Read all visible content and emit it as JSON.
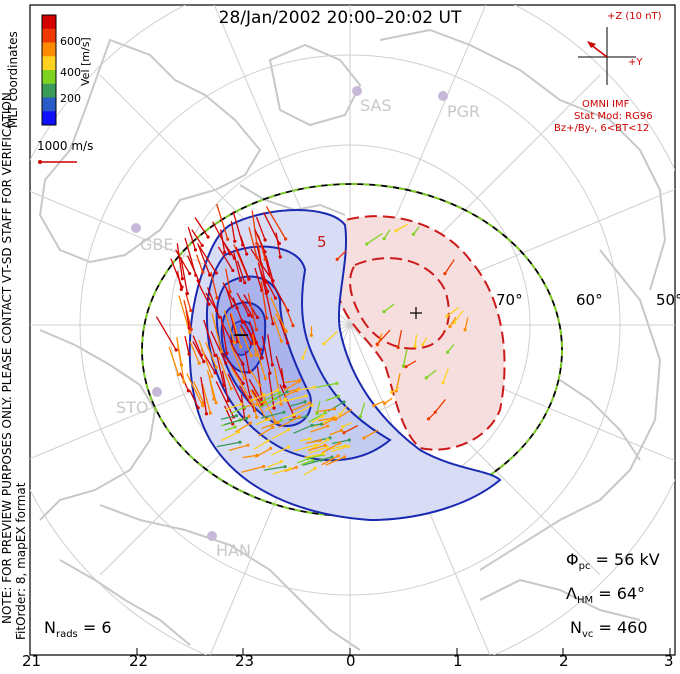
{
  "header": {
    "title": "28/Jan/2002 20:00–20:02 UT"
  },
  "colorbar": {
    "axis_label": "Vel [m/s]",
    "ticks": [
      "600",
      "400",
      "200"
    ],
    "colors": [
      "#d40000",
      "#ee3a00",
      "#ff8c00",
      "#ffd21f",
      "#7ed321",
      "#3a9a5a",
      "#2a5cc8",
      "#1010ff"
    ]
  },
  "side_labels": {
    "coords": "MLT coordinates",
    "note": "NOTE: FOR PREVIEW PURPOSES ONLY. PLEASE CONTACT VT-SD STAFF FOR VERIFICATION.",
    "fitorder": "FitOrder: 8, mapEX format"
  },
  "scale_vector": {
    "label": "1000 m/s"
  },
  "imf": {
    "z_label": "+Z (10 nT)",
    "y_label": "+Y",
    "source": "OMNI IMF",
    "model": "Stat Mod: RG96",
    "condition": "Bz+/By-, 6<BT<12",
    "color": "#cc0000"
  },
  "stations": [
    "SAS",
    "PGR",
    "GBE",
    "STO",
    "HAN"
  ],
  "latitude_labels": [
    "70°",
    "60°",
    "50°"
  ],
  "min_marker": "−",
  "max_marker": "+",
  "contour_label": "5",
  "stats": {
    "phi_pc_symbol": "Φ",
    "phi_pc_sub": "pc",
    "phi_pc_value": "= 56 kV",
    "lambda_symbol": "Λ",
    "lambda_sub": "HM",
    "lambda_value": "= 64°",
    "nvc_symbol": "N",
    "nvc_sub": "vc",
    "nvc_value": "= 460",
    "nrads_symbol": "N",
    "nrads_sub": "rads",
    "nrads_value": "= 6"
  },
  "mlt_axis": [
    "21",
    "22",
    "23",
    "0",
    "1",
    "2",
    "3"
  ],
  "colors": {
    "positive_cell_fill": "#f6dede",
    "positive_contour": "#cc1a1a",
    "negative_cell_fill": "#c6cdf1",
    "negative_contour": "#1a2ab0",
    "hm_boundary_green": "#7ed321",
    "continent": "#c8c8c8",
    "grid": "#cfcfcf"
  }
}
